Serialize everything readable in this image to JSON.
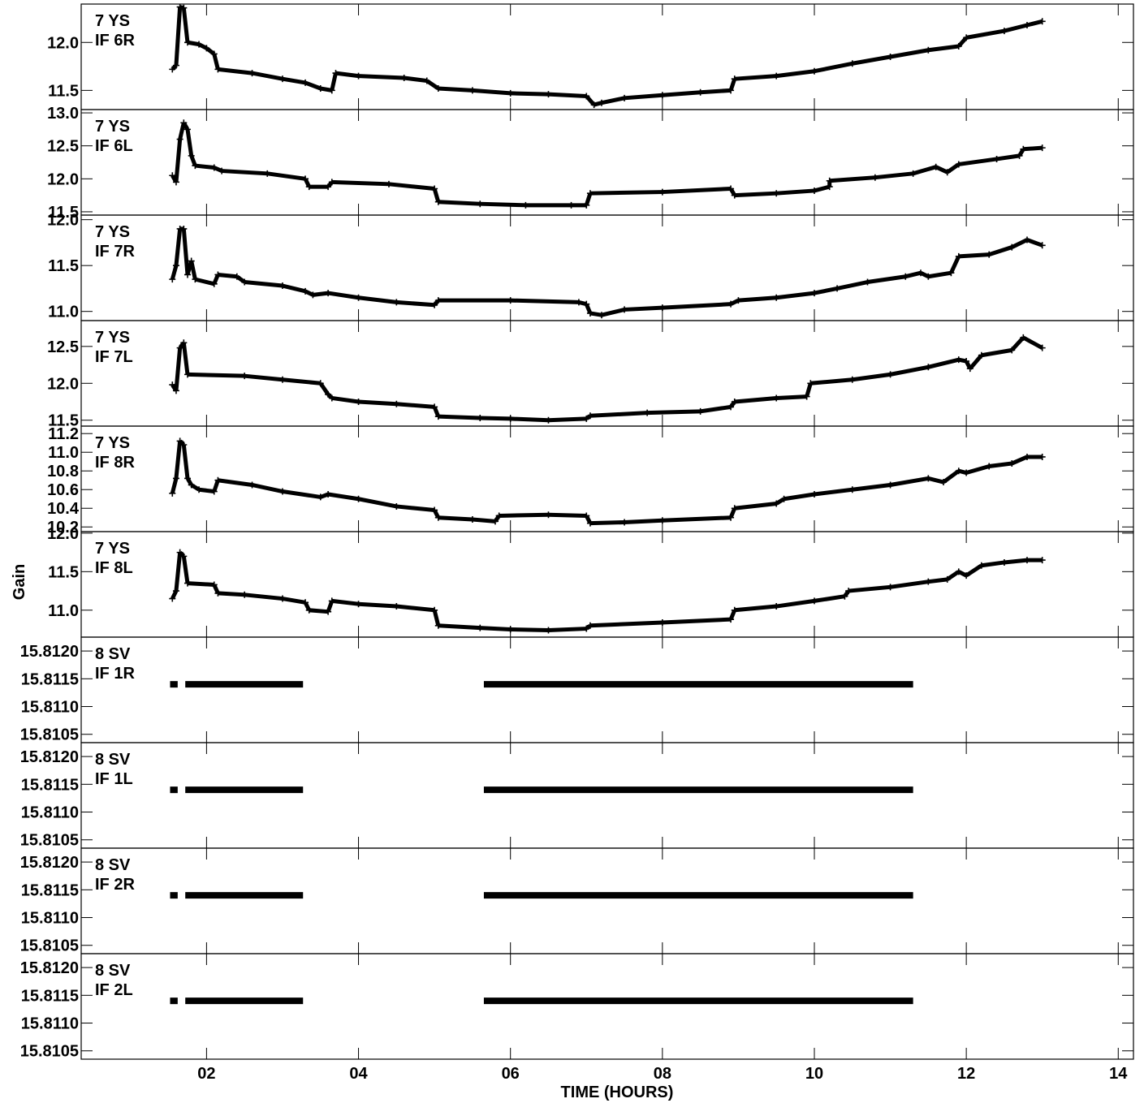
{
  "chart_data": {
    "type": "scatter",
    "marker": "+",
    "color": "#000000",
    "grid": false,
    "xlabel": "TIME (HOURS)",
    "ylabel": "Gain",
    "xlim": [
      0.35,
      14.2
    ],
    "xticks": [
      2,
      4,
      6,
      8,
      10,
      12,
      14
    ],
    "xtick_labels": [
      "02",
      "04",
      "06",
      "08",
      "10",
      "12",
      "14"
    ],
    "panels": [
      {
        "label": [
          "7 YS",
          "IF 6R"
        ],
        "ylim": [
          11.3,
          12.4
        ],
        "yticks": [
          11.5,
          12.0
        ],
        "ytick_labels": [
          "11.5",
          "12.0"
        ],
        "points": [
          [
            1.55,
            11.72
          ],
          [
            1.6,
            11.76
          ],
          [
            1.65,
            12.37
          ],
          [
            1.7,
            12.36
          ],
          [
            1.75,
            12.0
          ],
          [
            1.9,
            11.98
          ],
          [
            2.0,
            11.94
          ],
          [
            2.1,
            11.88
          ],
          [
            2.15,
            11.72
          ],
          [
            2.6,
            11.68
          ],
          [
            3.0,
            11.62
          ],
          [
            3.3,
            11.58
          ],
          [
            3.5,
            11.52
          ],
          [
            3.65,
            11.5
          ],
          [
            3.7,
            11.68
          ],
          [
            4.0,
            11.65
          ],
          [
            4.6,
            11.63
          ],
          [
            4.9,
            11.6
          ],
          [
            5.05,
            11.52
          ],
          [
            5.5,
            11.5
          ],
          [
            6.0,
            11.47
          ],
          [
            6.5,
            11.46
          ],
          [
            7.0,
            11.44
          ],
          [
            7.1,
            11.35
          ],
          [
            7.2,
            11.37
          ],
          [
            7.5,
            11.42
          ],
          [
            8.0,
            11.45
          ],
          [
            8.5,
            11.48
          ],
          [
            8.9,
            11.5
          ],
          [
            8.95,
            11.62
          ],
          [
            9.5,
            11.65
          ],
          [
            10.0,
            11.7
          ],
          [
            10.5,
            11.78
          ],
          [
            11.0,
            11.85
          ],
          [
            11.5,
            11.92
          ],
          [
            11.9,
            11.96
          ],
          [
            12.0,
            12.05
          ],
          [
            12.5,
            12.12
          ],
          [
            12.8,
            12.18
          ],
          [
            13.0,
            12.22
          ]
        ]
      },
      {
        "label": [
          "7 YS",
          "IF 6L"
        ],
        "ylim": [
          11.45,
          13.05
        ],
        "yticks": [
          11.5,
          12.0,
          12.5,
          13.0
        ],
        "ytick_labels": [
          "11.5",
          "12.0",
          "12.5",
          "13.0"
        ],
        "points": [
          [
            1.55,
            12.05
          ],
          [
            1.6,
            11.95
          ],
          [
            1.65,
            12.6
          ],
          [
            1.7,
            12.85
          ],
          [
            1.75,
            12.75
          ],
          [
            1.8,
            12.35
          ],
          [
            1.85,
            12.2
          ],
          [
            2.1,
            12.17
          ],
          [
            2.2,
            12.12
          ],
          [
            2.8,
            12.08
          ],
          [
            3.3,
            12.0
          ],
          [
            3.35,
            11.88
          ],
          [
            3.6,
            11.88
          ],
          [
            3.65,
            11.95
          ],
          [
            4.4,
            11.92
          ],
          [
            5.0,
            11.85
          ],
          [
            5.05,
            11.65
          ],
          [
            5.6,
            11.62
          ],
          [
            6.2,
            11.6
          ],
          [
            6.8,
            11.6
          ],
          [
            7.0,
            11.6
          ],
          [
            7.05,
            11.78
          ],
          [
            8.0,
            11.8
          ],
          [
            8.9,
            11.85
          ],
          [
            8.95,
            11.75
          ],
          [
            9.5,
            11.78
          ],
          [
            10.0,
            11.82
          ],
          [
            10.2,
            11.88
          ],
          [
            10.2,
            11.97
          ],
          [
            10.8,
            12.02
          ],
          [
            11.3,
            12.08
          ],
          [
            11.6,
            12.18
          ],
          [
            11.75,
            12.1
          ],
          [
            11.9,
            12.22
          ],
          [
            12.4,
            12.3
          ],
          [
            12.7,
            12.35
          ],
          [
            12.75,
            12.45
          ],
          [
            13.0,
            12.47
          ]
        ]
      },
      {
        "label": [
          "7 YS",
          "IF 7R"
        ],
        "ylim": [
          10.9,
          12.05
        ],
        "yticks": [
          11.0,
          11.5,
          12.0
        ],
        "ytick_labels": [
          "11.0",
          "11.5",
          "12.0"
        ],
        "points": [
          [
            1.55,
            11.35
          ],
          [
            1.6,
            11.5
          ],
          [
            1.65,
            11.9
          ],
          [
            1.7,
            11.9
          ],
          [
            1.75,
            11.4
          ],
          [
            1.8,
            11.55
          ],
          [
            1.85,
            11.35
          ],
          [
            2.1,
            11.3
          ],
          [
            2.15,
            11.4
          ],
          [
            2.4,
            11.38
          ],
          [
            2.5,
            11.32
          ],
          [
            3.0,
            11.28
          ],
          [
            3.3,
            11.22
          ],
          [
            3.4,
            11.18
          ],
          [
            3.6,
            11.2
          ],
          [
            4.0,
            11.15
          ],
          [
            4.5,
            11.1
          ],
          [
            5.0,
            11.07
          ],
          [
            5.05,
            11.12
          ],
          [
            6.0,
            11.12
          ],
          [
            6.9,
            11.1
          ],
          [
            7.0,
            11.08
          ],
          [
            7.05,
            10.98
          ],
          [
            7.2,
            10.96
          ],
          [
            7.5,
            11.02
          ],
          [
            8.0,
            11.04
          ],
          [
            8.9,
            11.08
          ],
          [
            9.0,
            11.12
          ],
          [
            9.5,
            11.15
          ],
          [
            10.0,
            11.2
          ],
          [
            10.3,
            11.25
          ],
          [
            10.7,
            11.32
          ],
          [
            11.2,
            11.38
          ],
          [
            11.4,
            11.42
          ],
          [
            11.5,
            11.38
          ],
          [
            11.8,
            11.42
          ],
          [
            11.9,
            11.6
          ],
          [
            12.3,
            11.62
          ],
          [
            12.6,
            11.7
          ],
          [
            12.8,
            11.78
          ],
          [
            13.0,
            11.72
          ]
        ]
      },
      {
        "label": [
          "7 YS",
          "IF 7L"
        ],
        "ylim": [
          11.42,
          12.85
        ],
        "yticks": [
          11.5,
          12.0,
          12.5
        ],
        "ytick_labels": [
          "11.5",
          "12.0",
          "12.5"
        ],
        "points": [
          [
            1.55,
            11.98
          ],
          [
            1.6,
            11.9
          ],
          [
            1.65,
            12.48
          ],
          [
            1.7,
            12.55
          ],
          [
            1.75,
            12.12
          ],
          [
            2.5,
            12.1
          ],
          [
            3.0,
            12.05
          ],
          [
            3.5,
            12.0
          ],
          [
            3.6,
            11.85
          ],
          [
            3.65,
            11.8
          ],
          [
            4.0,
            11.75
          ],
          [
            4.5,
            11.72
          ],
          [
            5.0,
            11.68
          ],
          [
            5.05,
            11.55
          ],
          [
            5.6,
            11.53
          ],
          [
            6.0,
            11.52
          ],
          [
            6.5,
            11.5
          ],
          [
            7.0,
            11.52
          ],
          [
            7.05,
            11.56
          ],
          [
            7.8,
            11.6
          ],
          [
            8.5,
            11.62
          ],
          [
            8.9,
            11.68
          ],
          [
            8.95,
            11.75
          ],
          [
            9.5,
            11.8
          ],
          [
            9.9,
            11.82
          ],
          [
            9.95,
            12.0
          ],
          [
            10.5,
            12.05
          ],
          [
            11.0,
            12.12
          ],
          [
            11.5,
            12.22
          ],
          [
            11.9,
            12.32
          ],
          [
            12.0,
            12.3
          ],
          [
            12.05,
            12.2
          ],
          [
            12.2,
            12.38
          ],
          [
            12.6,
            12.45
          ],
          [
            12.75,
            12.62
          ],
          [
            13.0,
            12.48
          ]
        ]
      },
      {
        "label": [
          "7 YS",
          "IF 8R"
        ],
        "ylim": [
          10.15,
          11.28
        ],
        "yticks": [
          10.2,
          10.4,
          10.6,
          10.8,
          11.0,
          11.2
        ],
        "ytick_labels": [
          "10.2",
          "10.4",
          "10.6",
          "10.8",
          "11.0",
          "11.2"
        ],
        "points": [
          [
            1.55,
            10.56
          ],
          [
            1.6,
            10.72
          ],
          [
            1.65,
            11.12
          ],
          [
            1.7,
            11.08
          ],
          [
            1.75,
            10.72
          ],
          [
            1.8,
            10.65
          ],
          [
            1.9,
            10.6
          ],
          [
            2.1,
            10.58
          ],
          [
            2.15,
            10.7
          ],
          [
            2.6,
            10.65
          ],
          [
            3.0,
            10.58
          ],
          [
            3.5,
            10.52
          ],
          [
            3.6,
            10.55
          ],
          [
            4.0,
            10.5
          ],
          [
            4.5,
            10.42
          ],
          [
            5.0,
            10.38
          ],
          [
            5.05,
            10.3
          ],
          [
            5.5,
            10.28
          ],
          [
            5.8,
            10.26
          ],
          [
            5.85,
            10.32
          ],
          [
            6.5,
            10.33
          ],
          [
            7.0,
            10.32
          ],
          [
            7.05,
            10.24
          ],
          [
            7.5,
            10.25
          ],
          [
            8.0,
            10.27
          ],
          [
            8.9,
            10.3
          ],
          [
            8.95,
            10.4
          ],
          [
            9.5,
            10.45
          ],
          [
            9.6,
            10.5
          ],
          [
            10.0,
            10.55
          ],
          [
            10.5,
            10.6
          ],
          [
            11.0,
            10.65
          ],
          [
            11.5,
            10.72
          ],
          [
            11.7,
            10.68
          ],
          [
            11.9,
            10.8
          ],
          [
            12.0,
            10.78
          ],
          [
            12.3,
            10.85
          ],
          [
            12.6,
            10.88
          ],
          [
            12.8,
            10.95
          ],
          [
            13.0,
            10.95
          ]
        ]
      },
      {
        "label": [
          "7 YS",
          "IF 8L"
        ],
        "ylim": [
          10.65,
          12.02
        ],
        "yticks": [
          11.0,
          11.5,
          12.0
        ],
        "ytick_labels": [
          "11.0",
          "11.5",
          "12.0"
        ],
        "points": [
          [
            1.55,
            11.15
          ],
          [
            1.6,
            11.25
          ],
          [
            1.65,
            11.75
          ],
          [
            1.7,
            11.7
          ],
          [
            1.75,
            11.35
          ],
          [
            2.1,
            11.33
          ],
          [
            2.15,
            11.22
          ],
          [
            2.5,
            11.2
          ],
          [
            3.0,
            11.15
          ],
          [
            3.3,
            11.1
          ],
          [
            3.35,
            11.0
          ],
          [
            3.6,
            10.98
          ],
          [
            3.65,
            11.12
          ],
          [
            4.0,
            11.08
          ],
          [
            4.5,
            11.05
          ],
          [
            5.0,
            11.0
          ],
          [
            5.05,
            10.8
          ],
          [
            5.6,
            10.77
          ],
          [
            6.0,
            10.75
          ],
          [
            6.5,
            10.74
          ],
          [
            7.0,
            10.76
          ],
          [
            7.05,
            10.8
          ],
          [
            8.0,
            10.84
          ],
          [
            8.9,
            10.88
          ],
          [
            8.95,
            11.0
          ],
          [
            9.5,
            11.05
          ],
          [
            10.0,
            11.12
          ],
          [
            10.4,
            11.18
          ],
          [
            10.45,
            11.25
          ],
          [
            11.0,
            11.3
          ],
          [
            11.5,
            11.37
          ],
          [
            11.75,
            11.4
          ],
          [
            11.9,
            11.5
          ],
          [
            12.0,
            11.45
          ],
          [
            12.2,
            11.58
          ],
          [
            12.5,
            11.62
          ],
          [
            12.8,
            11.65
          ],
          [
            13.0,
            11.65
          ]
        ]
      },
      {
        "label": [
          "8 SV",
          "IF 1R"
        ],
        "ylim": [
          15.81035,
          15.81225
        ],
        "yticks": [
          15.8105,
          15.811,
          15.8115,
          15.812
        ],
        "ytick_labels": [
          "15.8105",
          "15.8110",
          "15.8115",
          "15.8120"
        ],
        "segments": [
          [
            1.52,
            1.62,
            15.8114
          ],
          [
            1.72,
            3.27,
            15.8114
          ],
          [
            5.65,
            11.3,
            15.8114
          ]
        ]
      },
      {
        "label": [
          "8 SV",
          "IF 1L"
        ],
        "ylim": [
          15.81035,
          15.81225
        ],
        "yticks": [
          15.8105,
          15.811,
          15.8115,
          15.812
        ],
        "ytick_labels": [
          "15.8105",
          "15.8110",
          "15.8115",
          "15.8120"
        ],
        "segments": [
          [
            1.52,
            1.62,
            15.8114
          ],
          [
            1.72,
            3.27,
            15.8114
          ],
          [
            5.65,
            11.3,
            15.8114
          ]
        ]
      },
      {
        "label": [
          "8 SV",
          "IF 2R"
        ],
        "ylim": [
          15.81035,
          15.81225
        ],
        "yticks": [
          15.8105,
          15.811,
          15.8115,
          15.812
        ],
        "ytick_labels": [
          "15.8105",
          "15.8110",
          "15.8115",
          "15.8120"
        ],
        "segments": [
          [
            1.52,
            1.62,
            15.8114
          ],
          [
            1.72,
            3.27,
            15.8114
          ],
          [
            5.65,
            11.3,
            15.8114
          ]
        ]
      },
      {
        "label": [
          "8 SV",
          "IF 2L"
        ],
        "ylim": [
          15.81035,
          15.81225
        ],
        "yticks": [
          15.8105,
          15.811,
          15.8115,
          15.812
        ],
        "ytick_labels": [
          "15.8105",
          "15.8110",
          "15.8115",
          "15.8120"
        ],
        "segments": [
          [
            1.52,
            1.62,
            15.8114
          ],
          [
            1.72,
            3.27,
            15.8114
          ],
          [
            5.65,
            11.3,
            15.8114
          ]
        ]
      }
    ]
  }
}
